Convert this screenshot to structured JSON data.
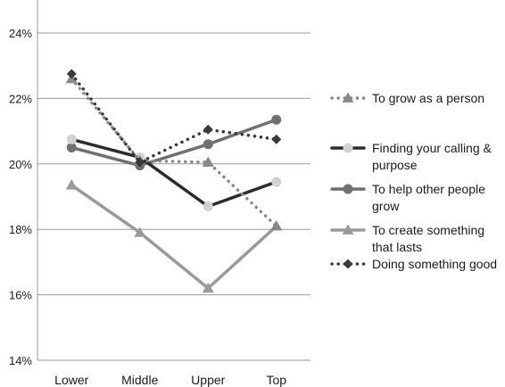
{
  "chart_data": {
    "type": "line",
    "title": "",
    "xlabel": "",
    "ylabel": "",
    "categories": [
      "Lower",
      "Middle",
      "Upper",
      "Top"
    ],
    "ylim": [
      14,
      24
    ],
    "yticks": [
      14,
      16,
      18,
      20,
      22,
      24
    ],
    "ytick_suffix": "%",
    "grid": "horizontal",
    "legend_position": "right",
    "series": [
      {
        "name": "To grow as a person",
        "values": [
          22.6,
          20.1,
          20.05,
          18.1
        ],
        "color": "#888888",
        "dash": "dotted",
        "marker": "triangle"
      },
      {
        "name": "Finding your calling & purpose",
        "values": [
          20.75,
          20.2,
          18.7,
          19.45
        ],
        "color": "#2b2b2b",
        "dash": "solid",
        "marker": "circle-light"
      },
      {
        "name": "To help other people grow",
        "values": [
          20.5,
          19.95,
          20.6,
          21.35
        ],
        "color": "#707070",
        "dash": "solid",
        "marker": "circle"
      },
      {
        "name": "To create something that lasts",
        "values": [
          19.35,
          17.9,
          16.2,
          18.1
        ],
        "color": "#9a9a9a",
        "dash": "solid",
        "marker": "triangle"
      },
      {
        "name": "Doing something good",
        "values": [
          22.75,
          20.05,
          21.05,
          20.75
        ],
        "color": "#3a3a3a",
        "dash": "dotted",
        "marker": "diamond"
      }
    ],
    "legend": [
      {
        "lines": [
          "To grow as a person"
        ]
      },
      {
        "lines": [
          "Finding your calling &",
          "purpose"
        ]
      },
      {
        "lines": [
          "To help other people",
          "grow"
        ]
      },
      {
        "lines": [
          "To create something",
          "that lasts"
        ]
      },
      {
        "lines": [
          "Doing something good"
        ]
      }
    ]
  }
}
